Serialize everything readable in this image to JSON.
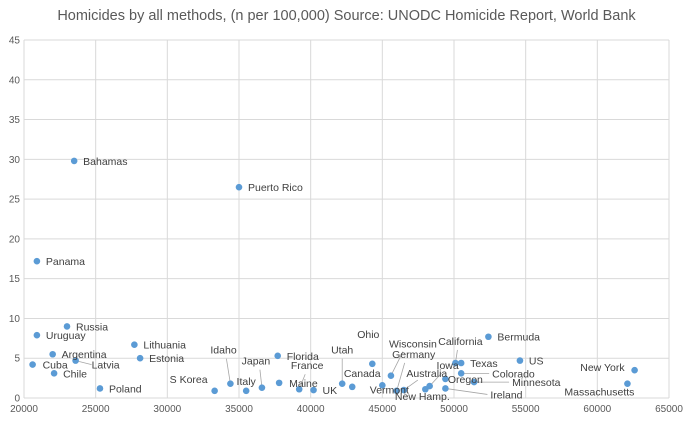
{
  "chart_data": {
    "type": "scatter",
    "title": "Homicides by all methods, (n per 100,000) Source: UNODC Homicide Report, World Bank",
    "xlabel": "",
    "ylabel": "",
    "xlim": [
      20000,
      65000
    ],
    "ylim": [
      0,
      45
    ],
    "x_ticks": [
      20000,
      25000,
      30000,
      35000,
      40000,
      45000,
      50000,
      55000,
      60000,
      65000
    ],
    "y_ticks": [
      0,
      5,
      10,
      15,
      20,
      25,
      30,
      35,
      40,
      45
    ],
    "grid": true,
    "marker_color": "#5b9bd5",
    "points": [
      {
        "label": "Bahamas",
        "x": 23500,
        "y": 29.8
      },
      {
        "label": "Puerto Rico",
        "x": 35000,
        "y": 26.5
      },
      {
        "label": "Panama",
        "x": 20900,
        "y": 17.2
      },
      {
        "label": "Russia",
        "x": 23000,
        "y": 9.0
      },
      {
        "label": "Uruguay",
        "x": 20900,
        "y": 7.9
      },
      {
        "label": "Lithuania",
        "x": 27700,
        "y": 6.7
      },
      {
        "label": "Argentina",
        "x": 22000,
        "y": 5.5
      },
      {
        "label": "Estonia",
        "x": 28100,
        "y": 5.0
      },
      {
        "label": "Latvia",
        "x": 23600,
        "y": 4.7
      },
      {
        "label": "Cuba",
        "x": 20600,
        "y": 4.2
      },
      {
        "label": "Chile",
        "x": 22100,
        "y": 3.1
      },
      {
        "label": "Poland",
        "x": 25300,
        "y": 1.2
      },
      {
        "label": "Idaho",
        "x": 34400,
        "y": 1.8
      },
      {
        "label": "S Korea",
        "x": 33300,
        "y": 0.9
      },
      {
        "label": "Italy",
        "x": 35500,
        "y": 0.9
      },
      {
        "label": "Japan",
        "x": 36600,
        "y": 1.3
      },
      {
        "label": "Florida",
        "x": 37700,
        "y": 5.3
      },
      {
        "label": "Maine",
        "x": 37800,
        "y": 1.9
      },
      {
        "label": "France",
        "x": 39200,
        "y": 1.1
      },
      {
        "label": "UK",
        "x": 40200,
        "y": 1.0
      },
      {
        "label": "Utah",
        "x": 42200,
        "y": 1.8
      },
      {
        "label": "Canada",
        "x": 42900,
        "y": 1.4
      },
      {
        "label": "Ohio",
        "x": 44300,
        "y": 4.3
      },
      {
        "label": "Vermont",
        "x": 45000,
        "y": 1.6
      },
      {
        "label": "Wisconsin",
        "x": 45600,
        "y": 2.8
      },
      {
        "label": "Germany",
        "x": 46000,
        "y": 0.9
      },
      {
        "label": "Australia",
        "x": 46500,
        "y": 1.0
      },
      {
        "label": "New Hamp.",
        "x": 48000,
        "y": 1.1
      },
      {
        "label": "Iowa",
        "x": 48300,
        "y": 1.5
      },
      {
        "label": "Oregon",
        "x": 49400,
        "y": 2.4
      },
      {
        "label": "California",
        "x": 50100,
        "y": 4.4
      },
      {
        "label": "Texas",
        "x": 50500,
        "y": 4.4
      },
      {
        "label": "Colorado",
        "x": 50500,
        "y": 3.1
      },
      {
        "label": "Minnesota",
        "x": 51400,
        "y": 2.0
      },
      {
        "label": "Ireland",
        "x": 49400,
        "y": 1.2
      },
      {
        "label": "Bermuda",
        "x": 52400,
        "y": 7.7
      },
      {
        "label": "US",
        "x": 54600,
        "y": 4.7
      },
      {
        "label": "New York",
        "x": 62600,
        "y": 3.5
      },
      {
        "label": "Massachusetts",
        "x": 62100,
        "y": 1.8
      }
    ]
  }
}
